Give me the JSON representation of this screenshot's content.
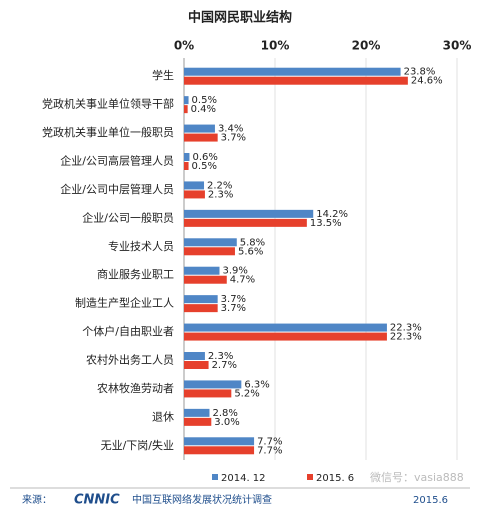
{
  "chart_data": {
    "type": "hbar",
    "title": "中国网民职业结构",
    "categories": [
      "学生",
      "党政机关事业单位领导干部",
      "党政机关事业单位一般职员",
      "企业/公司高层管理人员",
      "企业/公司中层管理人员",
      "企业/公司一般职员",
      "专业技术人员",
      "商业服务业职工",
      "制造生产型企业工人",
      "个体户/自由职业者",
      "农村外出务工人员",
      "农林牧渔劳动者",
      "退休",
      "无业/下岗/失业"
    ],
    "series": [
      {
        "name": "2014. 12",
        "color": "#4f86c6",
        "values": [
          23.8,
          0.5,
          3.4,
          0.6,
          2.2,
          14.2,
          5.8,
          3.9,
          3.7,
          22.3,
          2.3,
          6.3,
          2.8,
          7.7
        ],
        "value_labels": [
          "23.8%",
          "0.5%",
          "3.4%",
          "0.6%",
          "2.2%",
          "14.2%",
          "5.8%",
          "3.9%",
          "3.7%",
          "22.3%",
          "2.3%",
          "6.3%",
          "2.8%",
          "7.7%"
        ]
      },
      {
        "name": "2015. 6",
        "color": "#e6402c",
        "values": [
          24.6,
          0.4,
          3.7,
          0.5,
          2.3,
          13.5,
          5.6,
          4.7,
          3.7,
          22.3,
          2.7,
          5.2,
          3.0,
          7.7
        ],
        "value_labels": [
          "24.6%",
          "0.4%",
          "3.7%",
          "0.5%",
          "2.3%",
          "13.5%",
          "5.6%",
          "4.7%",
          "3.7%",
          "22.3%",
          "2.7%",
          "5.2%",
          "3.0%",
          "7.7%"
        ]
      }
    ],
    "xlim": [
      0,
      30
    ],
    "xticks": [
      {
        "value": 0,
        "label": "0%"
      },
      {
        "value": 10,
        "label": "10%"
      },
      {
        "value": 20,
        "label": "20%"
      },
      {
        "value": 30,
        "label": "30%"
      }
    ],
    "grid": true,
    "legend": "bottom"
  },
  "footer": {
    "prefix": "来源：",
    "logo": "CNNIC",
    "text": "中国互联网络发展状况统计调查",
    "date": "2015.6",
    "watermark": "微信号：vasia888"
  }
}
